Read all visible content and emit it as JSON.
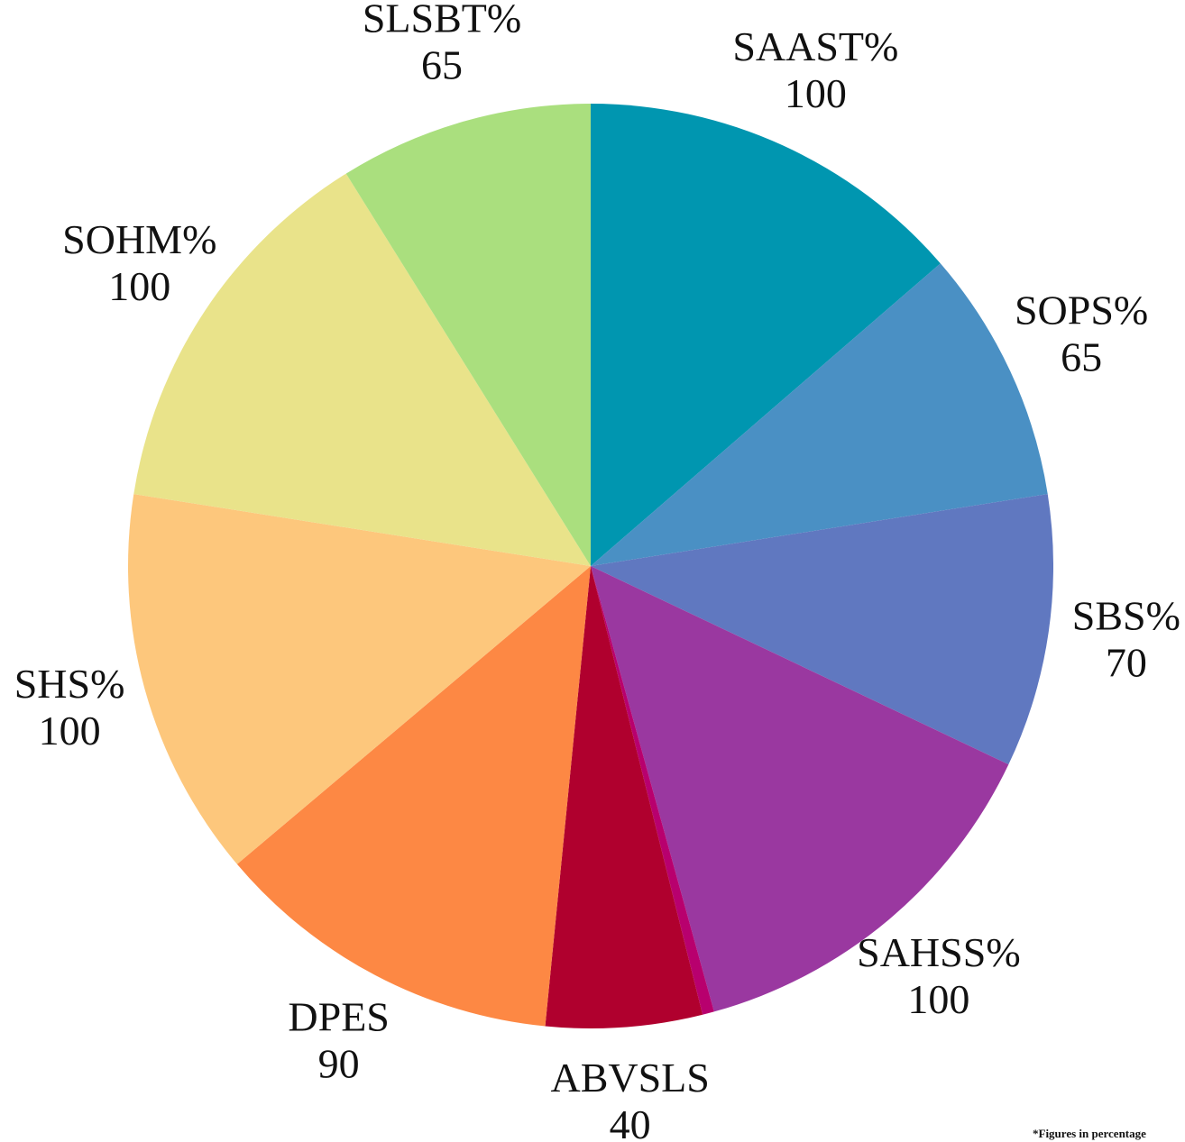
{
  "chart_data": {
    "type": "pie",
    "categories": [
      "SAAST%",
      "SOPS%",
      "SBS%",
      "SAHSS%",
      null,
      "ABVSLS",
      "DPES",
      "SHS%",
      "SOHM%",
      "SLSBT%"
    ],
    "values": [
      100,
      65,
      70,
      100,
      3,
      40,
      90,
      100,
      100,
      65
    ],
    "colors": [
      "#0096b0",
      "#4a90c4",
      "#6078c0",
      "#9a38a0",
      "#b8006e",
      "#b0002e",
      "#fd8844",
      "#fdc77c",
      "#e9e38a",
      "#aadf7e"
    ],
    "note": "*Figures in percentage"
  }
}
